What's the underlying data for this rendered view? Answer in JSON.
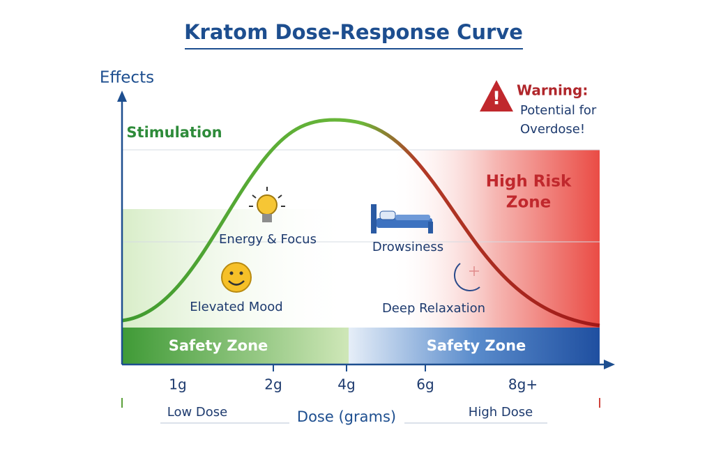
{
  "title": "Kratom Dose-Response Curve",
  "axis": {
    "y_label": "Effects",
    "x_label": "Dose (grams)",
    "ticks": [
      "1g",
      "2g",
      "4g",
      "6g",
      "8g+"
    ]
  },
  "stimulation": "Stimulation",
  "warning": {
    "heading": "Warning:",
    "lines": [
      "Potential for",
      "Overdose!"
    ]
  },
  "high_risk_zone": [
    "High Risk",
    "Zone"
  ],
  "annotations": {
    "energy_focus": "Energy & Focus",
    "elevated_mood": "Elevated Mood",
    "drowsiness": "Drowsiness",
    "deep_relaxation": "Deep Relaxation"
  },
  "safety_zones": [
    "Safety Zone",
    "Safety Zone"
  ],
  "range": {
    "low": "Low Dose",
    "high": "High Dose"
  }
}
